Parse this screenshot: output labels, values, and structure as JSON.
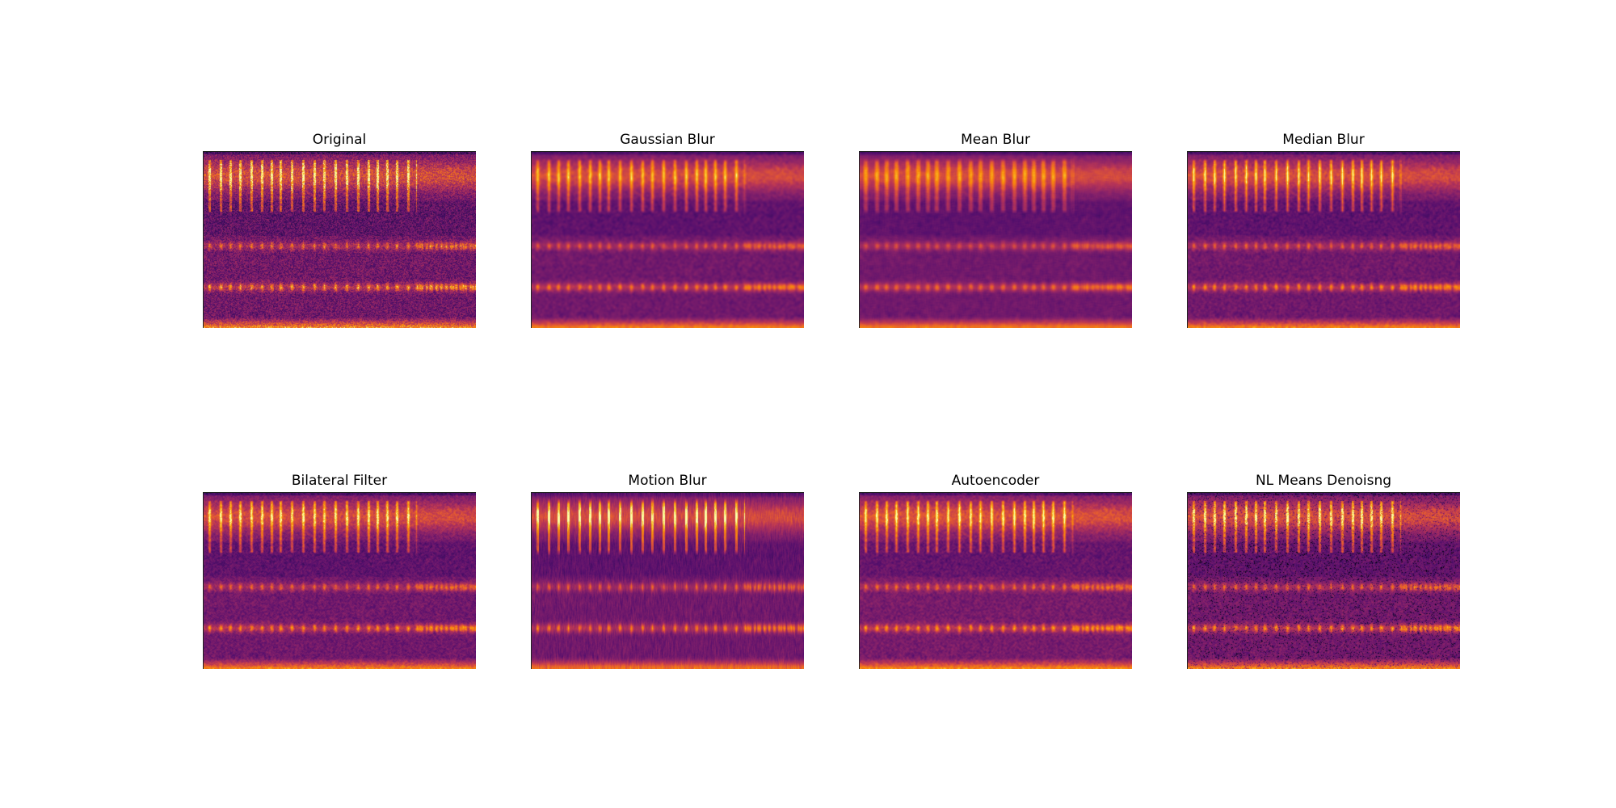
{
  "panels": [
    {
      "title": "Original",
      "effect": "original"
    },
    {
      "title": "Gaussian Blur",
      "effect": "gaussian"
    },
    {
      "title": "Mean Blur",
      "effect": "mean"
    },
    {
      "title": "Median Blur",
      "effect": "median"
    },
    {
      "title": "Bilateral Filter",
      "effect": "bilateral"
    },
    {
      "title": "Motion Blur",
      "effect": "motion"
    },
    {
      "title": "Autoencoder",
      "effect": "autoencoder"
    },
    {
      "title": "NL Means Denoisng",
      "effect": "nlmeans"
    }
  ],
  "colormap": "inferno",
  "colors": {
    "dark": "#2a0f4e",
    "base": "#5c1f73",
    "mid": "#8a2d6e",
    "bright": "#e0563f",
    "peak": "#f6a23a"
  }
}
